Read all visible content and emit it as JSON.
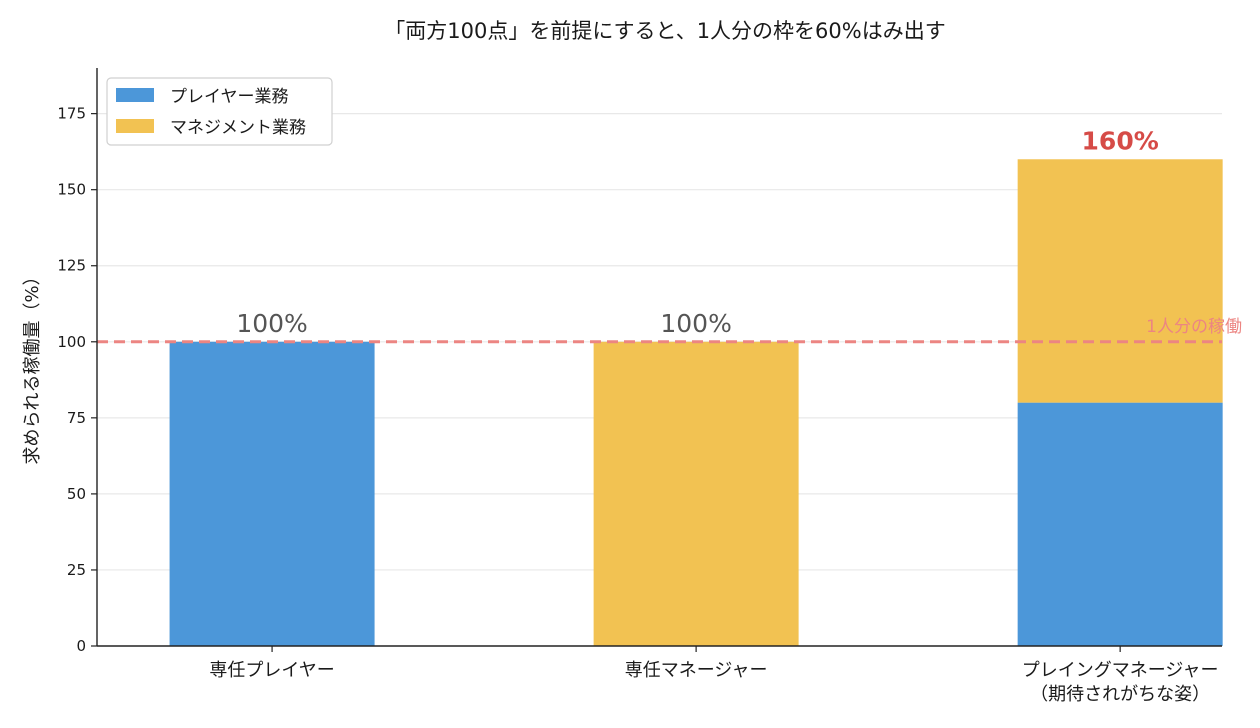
{
  "chart_data": {
    "type": "bar",
    "stacked": true,
    "title": "「両方100点」を前提にすると、1人分の枠を60%はみ出す",
    "xlabel": "",
    "ylabel": "求められる稼働量（%）",
    "ylim": [
      0,
      190
    ],
    "yticks": [
      0,
      25,
      50,
      75,
      100,
      125,
      150,
      175
    ],
    "grid": "horizontal",
    "legend_position": "top-left",
    "categories": [
      "専任プレイヤー",
      "専任マネージャー",
      "プレイングマネージャー\n（期待されがちな姿）"
    ],
    "series": [
      {
        "name": "プレイヤー業務",
        "color": "#4c97d9",
        "values": [
          100,
          0,
          80
        ]
      },
      {
        "name": "マネジメント業務",
        "color": "#f2c252",
        "values": [
          0,
          100,
          80
        ]
      }
    ],
    "totals_labels": [
      "100%",
      "100%",
      "160%"
    ],
    "totals_label_colors": [
      "#555555",
      "#555555",
      "#d64b47"
    ],
    "reference_line": {
      "value": 100,
      "label": "1人分の稼働",
      "color": "#ec8582"
    }
  }
}
